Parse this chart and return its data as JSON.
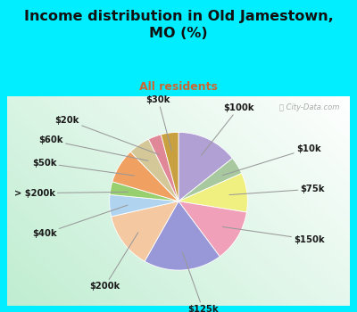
{
  "title": "Income distribution in Old Jamestown,\nMO (%)",
  "subtitle": "All residents",
  "title_color": "#111111",
  "subtitle_color": "#cc6633",
  "bg_color": "#00eeff",
  "chart_bg": "#d8efe0",
  "watermark": "ⓘ City-Data.com",
  "labels": [
    "$100k",
    "$10k",
    "$75k",
    "$150k",
    "$125k",
    "$200k",
    "$40k",
    "> $200k",
    "$50k",
    "$60k",
    "$20k",
    "$30k"
  ],
  "values": [
    14,
    4,
    9,
    12,
    18,
    13,
    5,
    3,
    8,
    5,
    3,
    4
  ],
  "colors": [
    "#b0a0d4",
    "#a8c8a0",
    "#f0f080",
    "#f0a0b8",
    "#9898d8",
    "#f4c8a0",
    "#b0d4f0",
    "#98d070",
    "#f0a060",
    "#d4c898",
    "#e08898",
    "#c8a040"
  ],
  "startangle": 90,
  "figsize": [
    4.0,
    3.5
  ],
  "dpi": 100
}
